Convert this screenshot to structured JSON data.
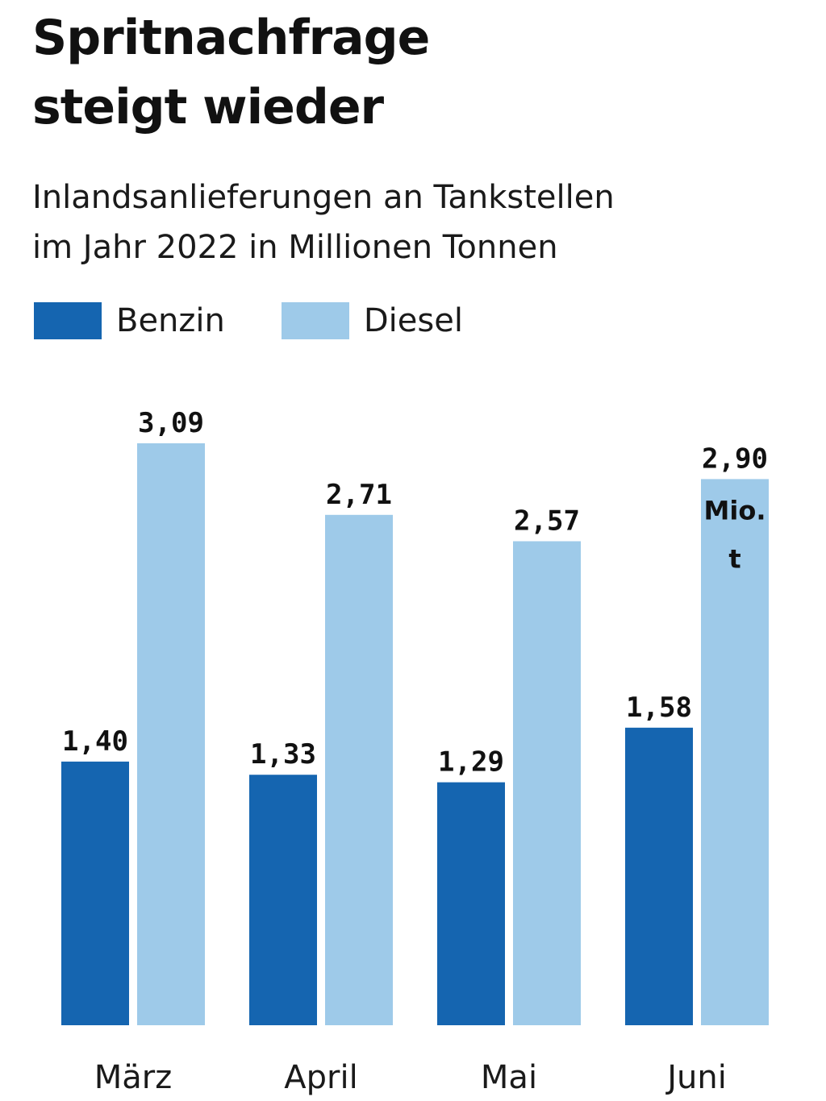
{
  "title_line1": "Spritnachfrage",
  "title_line2": "steigt wieder",
  "subtitle_line1": "Inlandsanlieferungen an Tankstellen",
  "subtitle_line2": "im Jahr 2022 in Millionen Tonnen",
  "chart_data": {
    "type": "bar",
    "title": "Spritnachfrage steigt wieder",
    "subtitle": "Inlandsanlieferungen an Tankstellen im Jahr 2022 in Millionen Tonnen",
    "categories": [
      "März",
      "April",
      "Mai",
      "Juni"
    ],
    "series": [
      {
        "name": "Benzin",
        "color": "#1565b0",
        "values": [
          1.4,
          1.33,
          1.29,
          1.58
        ],
        "labels": [
          "1,40",
          "1,33",
          "1,29",
          "1,58"
        ]
      },
      {
        "name": "Diesel",
        "color": "#9ecae9",
        "values": [
          3.09,
          2.71,
          2.57,
          2.9
        ],
        "labels": [
          "3,09",
          "2,71",
          "2,57",
          "2,90"
        ]
      }
    ],
    "unit_annotation": {
      "text_line1": "Mio.",
      "text_line2": "t",
      "series": "Diesel",
      "category": "Juni"
    },
    "xlabel": "",
    "ylabel": "",
    "ylim": [
      0,
      3.09
    ],
    "grid": false,
    "legend_position": "top-left"
  }
}
